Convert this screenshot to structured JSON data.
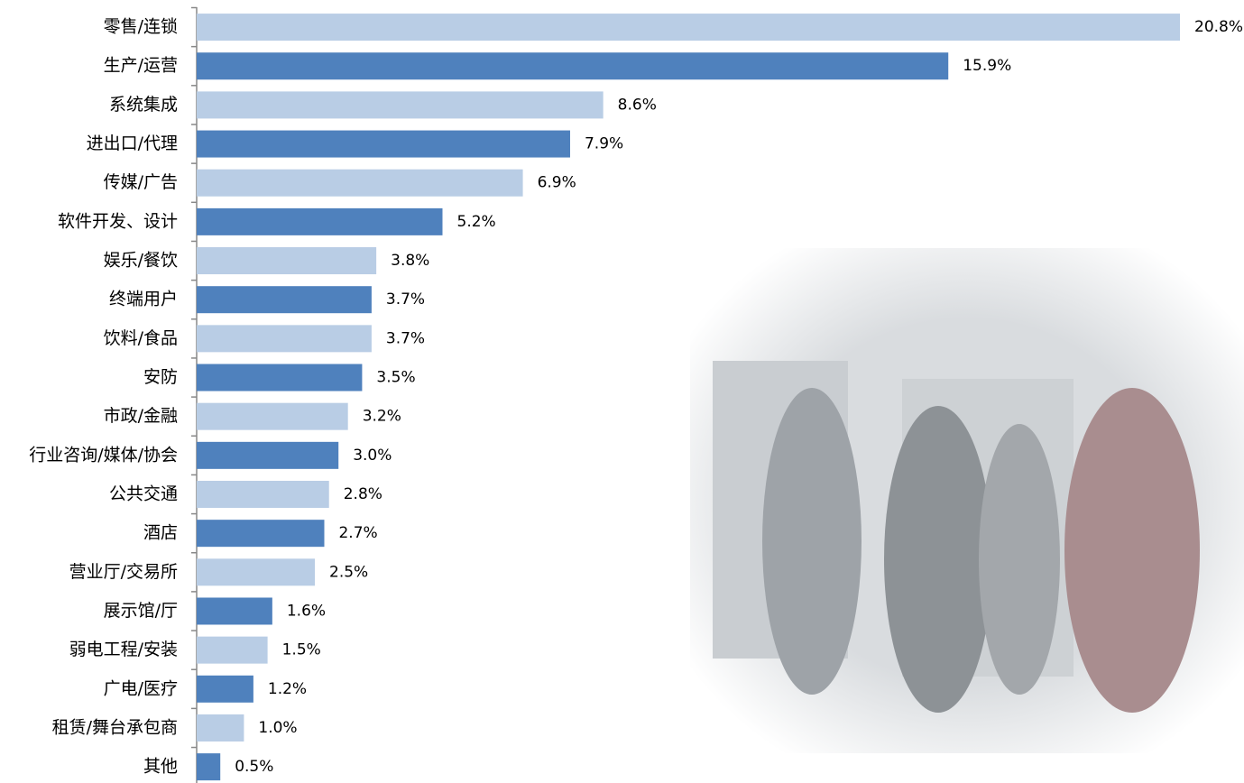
{
  "chart_data": {
    "type": "bar",
    "orientation": "horizontal",
    "categories": [
      "零售/连锁",
      "生产/运营",
      "系统集成",
      "进出口/代理",
      "传媒/广告",
      "软件开发、设计",
      "娱乐/餐饮",
      "终端用户",
      "饮料/食品",
      "安防",
      "市政/金融",
      "行业咨询/媒体/协会",
      "公共交通",
      "酒店",
      "营业厅/交易所",
      "展示馆/厅",
      "弱电工程/安装",
      "广电/医疗",
      "租赁/舞台承包商",
      "其他"
    ],
    "values": [
      20.8,
      15.9,
      8.6,
      7.9,
      6.9,
      5.2,
      3.8,
      3.7,
      3.7,
      3.5,
      3.2,
      3.0,
      2.8,
      2.7,
      2.5,
      1.6,
      1.5,
      1.2,
      1.0,
      0.5
    ],
    "value_labels": [
      "20.8%",
      "15.9%",
      "8.6%",
      "7.9%",
      "6.9%",
      "5.2%",
      "3.8%",
      "3.7%",
      "3.7%",
      "3.5%",
      "3.2%",
      "3.0%",
      "2.8%",
      "2.7%",
      "2.5%",
      "1.6%",
      "1.5%",
      "1.2%",
      "1.0%",
      "0.5%"
    ],
    "colors": [
      "#b9cde5",
      "#4f81bd"
    ]
  }
}
